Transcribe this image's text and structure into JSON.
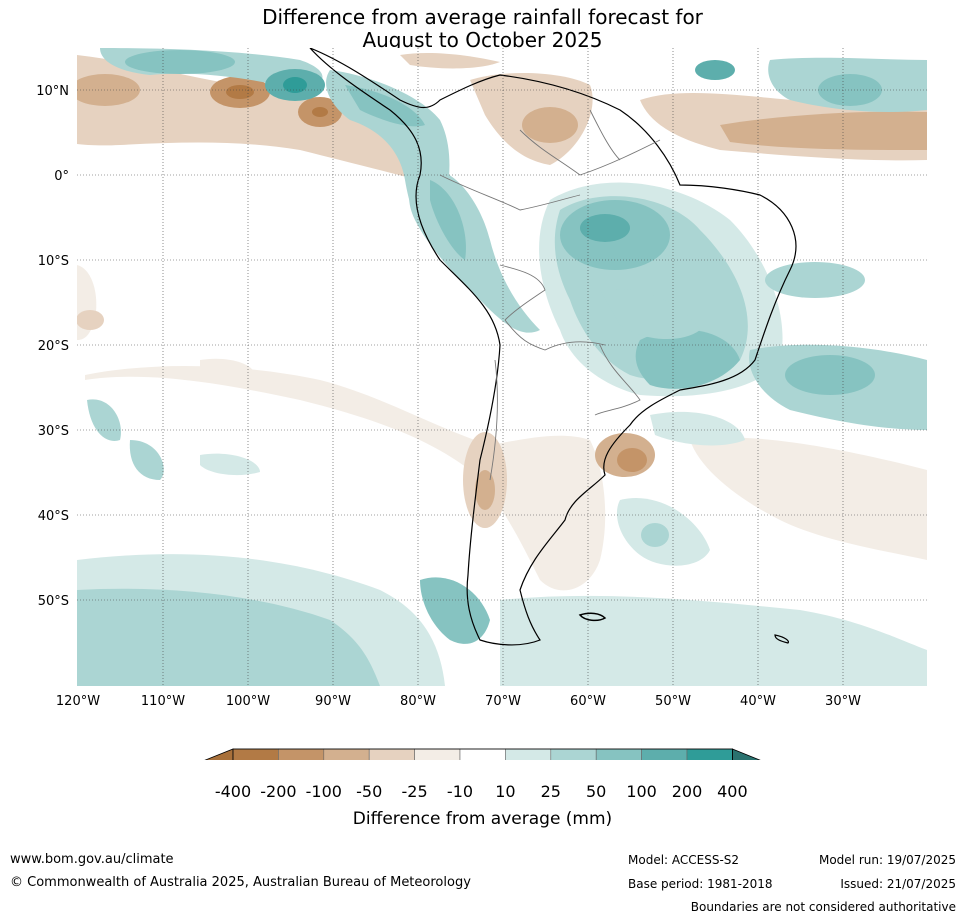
{
  "title": {
    "line1": "Difference from average rainfall forecast for",
    "line2": "August to October 2025"
  },
  "map": {
    "lat_labels": [
      "10°N",
      "0°",
      "10°S",
      "20°S",
      "30°S",
      "40°S",
      "50°S"
    ],
    "lon_labels": [
      "120°W",
      "110°W",
      "100°W",
      "90°W",
      "80°W",
      "70°W",
      "60°W",
      "50°W",
      "40°W",
      "30°W"
    ]
  },
  "colorbar": {
    "title": "Difference from average (mm)",
    "ticks": [
      "-400",
      "-200",
      "-100",
      "-50",
      "-25",
      "-10",
      "10",
      "25",
      "50",
      "100",
      "200",
      "400"
    ],
    "colors": [
      "#a8703a",
      "#b27a45",
      "#c49468",
      "#d3b08f",
      "#e6d2c0",
      "#f3ede6",
      "#ffffff",
      "#d4e9e7",
      "#abd5d3",
      "#86c3c1",
      "#5daeac",
      "#2f9c98",
      "#2a726f"
    ]
  },
  "footer": {
    "url": "www.bom.gov.au/climate",
    "copyright": "© Commonwealth of Australia 2025, Australian Bureau of Meteorology",
    "model": "Model: ACCESS-S2",
    "base_period": "Base period: 1981-2018",
    "model_run": "Model run: 19/07/2025",
    "issued": "Issued: 21/07/2025",
    "disclaimer": "Boundaries are not considered authoritative"
  }
}
